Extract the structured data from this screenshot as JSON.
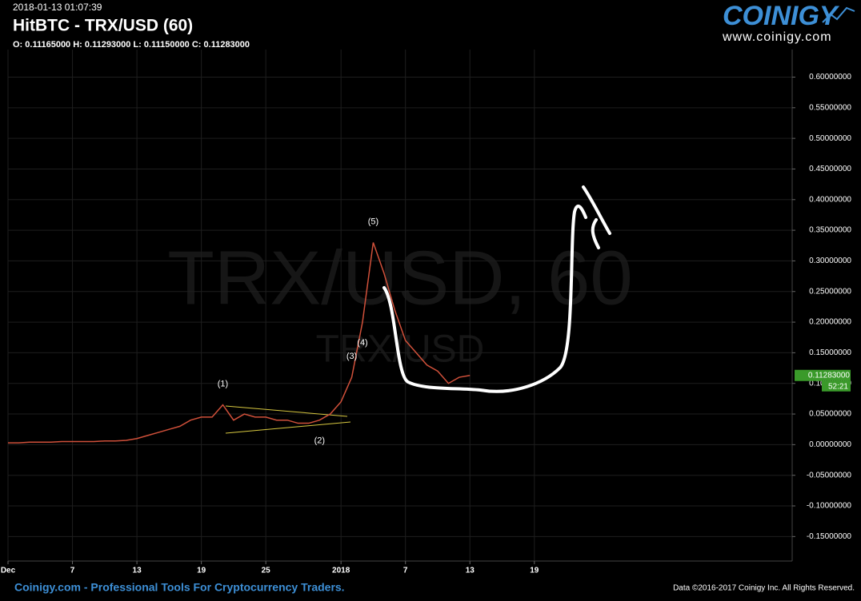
{
  "header": {
    "timestamp": "2018-01-13 01:07:39",
    "title": "HitBTC - TRX/USD (60)",
    "ohlc": "O: 0.11165000 H: 0.11293000 L: 0.11150000 C: 0.11283000"
  },
  "logo": {
    "brand": "COINIGY",
    "url": "www.coinigy.com"
  },
  "watermark": {
    "main": "TRX/USD, 60",
    "sub": "TRX/USD"
  },
  "footer": {
    "left": "Coinigy.com - Professional Tools For Cryptocurrency Traders.",
    "right": "Data ©2016-2017 Coinigy Inc. All Rights Reserved."
  },
  "chart_data": {
    "type": "line",
    "x": [
      "2017-12-01",
      "2017-12-02",
      "2017-12-03",
      "2017-12-04",
      "2017-12-05",
      "2017-12-06",
      "2017-12-07",
      "2017-12-08",
      "2017-12-09",
      "2017-12-10",
      "2017-12-11",
      "2017-12-12",
      "2017-12-13",
      "2017-12-14",
      "2017-12-15",
      "2017-12-16",
      "2017-12-17",
      "2017-12-18",
      "2017-12-19",
      "2017-12-20",
      "2017-12-21",
      "2017-12-22",
      "2017-12-23",
      "2017-12-24",
      "2017-12-25",
      "2017-12-26",
      "2017-12-27",
      "2017-12-28",
      "2017-12-29",
      "2017-12-30",
      "2017-12-31",
      "2018-01-01",
      "2018-01-02",
      "2018-01-03",
      "2018-01-04",
      "2018-01-05",
      "2018-01-06",
      "2018-01-07",
      "2018-01-08",
      "2018-01-09",
      "2018-01-10",
      "2018-01-11",
      "2018-01-12",
      "2018-01-13"
    ],
    "series": [
      {
        "name": "TRX/USD",
        "color": "#d0503a",
        "values": [
          0.003,
          0.003,
          0.004,
          0.004,
          0.004,
          0.005,
          0.005,
          0.005,
          0.005,
          0.006,
          0.006,
          0.007,
          0.01,
          0.015,
          0.02,
          0.025,
          0.03,
          0.04,
          0.045,
          0.045,
          0.065,
          0.04,
          0.05,
          0.045,
          0.045,
          0.04,
          0.04,
          0.035,
          0.035,
          0.04,
          0.05,
          0.07,
          0.11,
          0.2,
          0.33,
          0.28,
          0.22,
          0.17,
          0.15,
          0.13,
          0.12,
          0.1,
          0.11,
          0.113
        ]
      }
    ],
    "xlim": [
      "2017-12-01",
      "2018-02-12"
    ],
    "xticks": [
      {
        "value": "2017-12-01",
        "label": "Dec"
      },
      {
        "value": "2017-12-07",
        "label": "7"
      },
      {
        "value": "2017-12-13",
        "label": "13"
      },
      {
        "value": "2017-12-19",
        "label": "19"
      },
      {
        "value": "2017-12-25",
        "label": "25"
      },
      {
        "value": "2018-01-01",
        "label": "2018"
      },
      {
        "value": "2018-01-07",
        "label": "7"
      },
      {
        "value": "2018-01-13",
        "label": "13"
      },
      {
        "value": "2018-01-19",
        "label": "19"
      }
    ],
    "ylim": [
      -0.19,
      0.645
    ],
    "yticks": [
      {
        "value": -0.15,
        "label": "-0.15000000"
      },
      {
        "value": -0.1,
        "label": "-0.10000000"
      },
      {
        "value": -0.05,
        "label": "-0.05000000"
      },
      {
        "value": 0,
        "label": "0.00000000"
      },
      {
        "value": 0.05,
        "label": "0.05000000"
      },
      {
        "value": 0.1,
        "label": "0.10000000"
      },
      {
        "value": 0.15,
        "label": "0.15000000"
      },
      {
        "value": 0.2,
        "label": "0.20000000"
      },
      {
        "value": 0.25,
        "label": "0.25000000"
      },
      {
        "value": 0.3,
        "label": "0.30000000"
      },
      {
        "value": 0.35,
        "label": "0.35000000"
      },
      {
        "value": 0.4,
        "label": "0.40000000"
      },
      {
        "value": 0.45,
        "label": "0.45000000"
      },
      {
        "value": 0.5,
        "label": "0.50000000"
      },
      {
        "value": 0.55,
        "label": "0.55000000"
      },
      {
        "value": 0.6,
        "label": "0.60000000"
      }
    ],
    "grid": true,
    "annotations": [
      {
        "text": "(1)",
        "x": "2017-12-21",
        "position": "above"
      },
      {
        "text": "(2)",
        "x": "2017-12-30",
        "position": "below"
      },
      {
        "text": "(3)",
        "x": "2018-01-02",
        "position": "above"
      },
      {
        "text": "(4)",
        "x": "2018-01-03",
        "position": "below"
      },
      {
        "text": "(5)",
        "x": "2018-01-04",
        "position": "above"
      }
    ],
    "last_price_label": "0.11283000",
    "countdown": "52:21",
    "last_price_color": "#3a9a2a"
  }
}
